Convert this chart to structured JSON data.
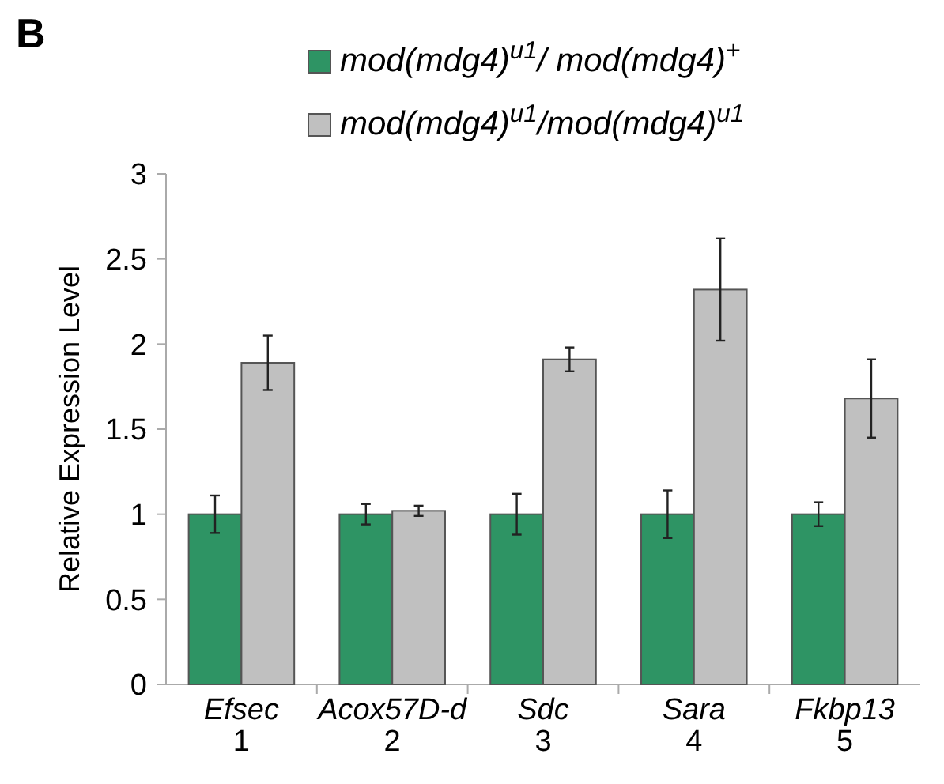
{
  "chart_data": {
    "type": "bar",
    "title": "B",
    "ylabel": "Relative Expression Level",
    "categories": [
      "Efsec\n1",
      "Acox57D-d\n2",
      "Sdc\n3",
      "Sara\n4",
      "Fkbp13\n5"
    ],
    "series": [
      {
        "name": "mod(mdg4)$^{u1}$/ mod(mdg4)$^{+}$",
        "color": "#2e9464",
        "values": [
          1,
          1,
          1,
          1,
          1
        ],
        "errors": [
          0.11,
          0.06,
          0.12,
          0.14,
          0.07
        ]
      },
      {
        "name": "mod(mdg4)$^{u1}$/mod(mdg4)$^{u1}$",
        "color": "#c0c0c0",
        "values": [
          1.89,
          1.02,
          1.91,
          2.32,
          1.68
        ],
        "errors": [
          0.16,
          0.03,
          0.07,
          0.3,
          0.23
        ]
      }
    ],
    "ylim": [
      0,
      3
    ],
    "yticks": [
      0,
      0.5,
      1,
      1.5,
      2,
      2.5,
      3
    ],
    "legend": "top",
    "grid": false
  }
}
